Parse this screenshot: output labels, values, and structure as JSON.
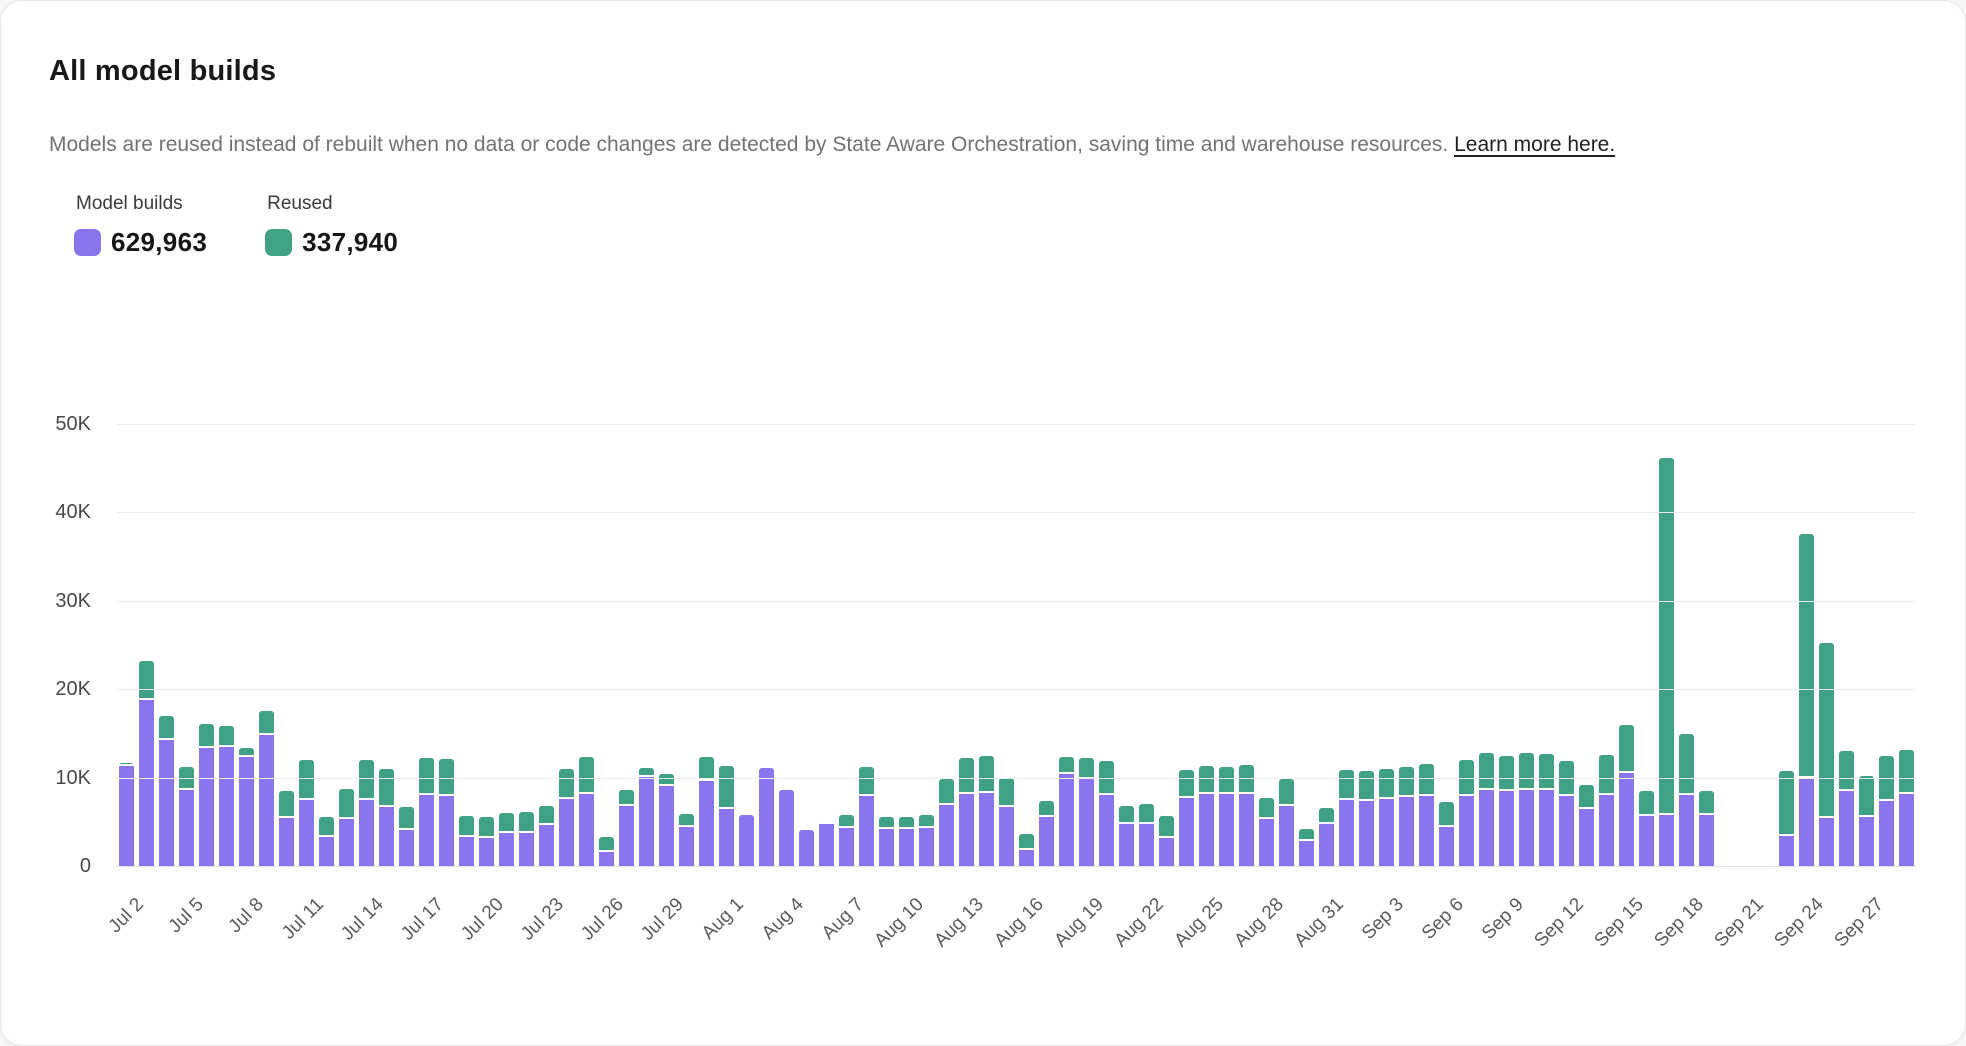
{
  "page": {
    "title": "All model builds",
    "subtitle": "Models are reused instead of rebuilt when no data or code changes are detected by State Aware Orchestration, saving time and warehouse resources. ",
    "link_text": "Learn more here."
  },
  "legend": {
    "items": [
      {
        "label": "Model builds",
        "value": "629,963",
        "color": "#8a75f1"
      },
      {
        "label": "Reused",
        "value": "337,940",
        "color": "#41a185"
      }
    ]
  },
  "chart_data": {
    "type": "bar",
    "stacked": true,
    "title": "All model builds",
    "xlabel": "",
    "ylabel": "",
    "ylim": [
      0,
      50000
    ],
    "y_ticks": [
      "0",
      "10K",
      "20K",
      "30K",
      "40K",
      "50K"
    ],
    "x_tick_every": 3,
    "grid": true,
    "legend_position": "top-left",
    "categories": [
      "Jul 2",
      "Jul 3",
      "Jul 4",
      "Jul 5",
      "Jul 6",
      "Jul 7",
      "Jul 8",
      "Jul 9",
      "Jul 10",
      "Jul 11",
      "Jul 12",
      "Jul 13",
      "Jul 14",
      "Jul 15",
      "Jul 16",
      "Jul 17",
      "Jul 18",
      "Jul 19",
      "Jul 20",
      "Jul 21",
      "Jul 22",
      "Jul 23",
      "Jul 24",
      "Jul 25",
      "Jul 26",
      "Jul 27",
      "Jul 28",
      "Jul 29",
      "Jul 30",
      "Jul 31",
      "Aug 1",
      "Aug 2",
      "Aug 3",
      "Aug 4",
      "Aug 5",
      "Aug 6",
      "Aug 7",
      "Aug 8",
      "Aug 9",
      "Aug 10",
      "Aug 11",
      "Aug 12",
      "Aug 13",
      "Aug 14",
      "Aug 15",
      "Aug 16",
      "Aug 17",
      "Aug 18",
      "Aug 19",
      "Aug 20",
      "Aug 21",
      "Aug 22",
      "Aug 23",
      "Aug 24",
      "Aug 25",
      "Aug 26",
      "Aug 27",
      "Aug 28",
      "Aug 29",
      "Aug 30",
      "Aug 31",
      "Sep 1",
      "Sep 2",
      "Sep 3",
      "Sep 4",
      "Sep 5",
      "Sep 6",
      "Sep 7",
      "Sep 8",
      "Sep 9",
      "Sep 10",
      "Sep 11",
      "Sep 12",
      "Sep 13",
      "Sep 14",
      "Sep 15",
      "Sep 16",
      "Sep 17",
      "Sep 18",
      "Sep 19",
      "Sep 20",
      "Sep 21",
      "Sep 22",
      "Sep 23",
      "Sep 24",
      "Sep 25",
      "Sep 26",
      "Sep 27",
      "Sep 28",
      "Sep 29"
    ],
    "series": [
      {
        "name": "Model builds",
        "color": "#8a75f1",
        "values": [
          11300,
          18800,
          14300,
          8600,
          13400,
          13500,
          12300,
          14800,
          5400,
          7500,
          3300,
          5300,
          7500,
          6700,
          4100,
          8000,
          7900,
          3300,
          3200,
          3700,
          3700,
          4600,
          7600,
          8100,
          1600,
          6800,
          10100,
          9000,
          4400,
          9600,
          6500,
          5800,
          11100,
          8600,
          4100,
          4700,
          4300,
          7900,
          4200,
          4200,
          4300,
          6900,
          8100,
          8300,
          6700,
          1800,
          5500,
          10400,
          9800,
          8000,
          4700,
          4700,
          3200,
          7700,
          8200,
          8200,
          8200,
          5300,
          6800,
          2800,
          4700,
          7500,
          7400,
          7600,
          7800,
          7900,
          4400,
          7900,
          8600,
          8500,
          8600,
          8600,
          7900,
          6500,
          8000,
          10500,
          5700,
          5800,
          8000,
          5800,
          0,
          0,
          0,
          3400,
          9900,
          5400,
          8500,
          5600,
          7300,
          8100
        ]
      },
      {
        "name": "Reused",
        "color": "#41a185",
        "values": [
          400,
          4400,
          2700,
          2600,
          2700,
          2300,
          1100,
          2700,
          3100,
          4500,
          2300,
          3400,
          4500,
          4300,
          2600,
          4200,
          4200,
          2400,
          2400,
          2300,
          2400,
          2200,
          3400,
          4200,
          1700,
          1800,
          1000,
          1400,
          1500,
          2700,
          4800,
          0,
          0,
          0,
          0,
          300,
          1500,
          3300,
          1400,
          1300,
          1500,
          2900,
          4100,
          4100,
          3300,
          1800,
          1800,
          1900,
          2400,
          3900,
          2100,
          2300,
          2500,
          3200,
          3100,
          3000,
          3200,
          2400,
          3100,
          1400,
          1900,
          3400,
          3400,
          3400,
          3400,
          3600,
          2800,
          4100,
          4200,
          4000,
          4200,
          4100,
          4000,
          2700,
          4600,
          5400,
          2800,
          40400,
          6900,
          2700,
          0,
          0,
          0,
          7300,
          27700,
          19800,
          4500,
          4600,
          5100,
          5000
        ]
      }
    ]
  }
}
